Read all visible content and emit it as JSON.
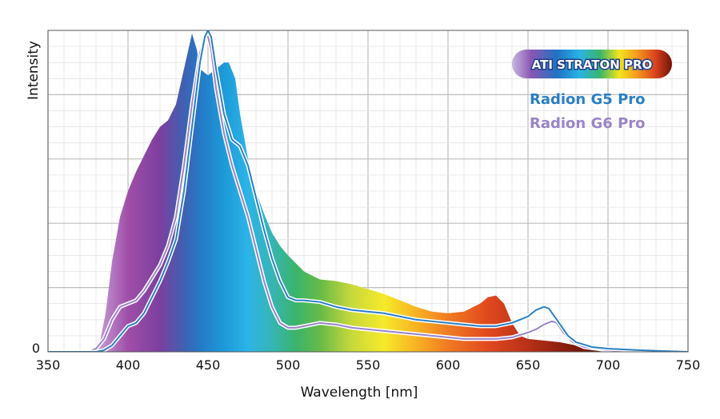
{
  "chart_data": {
    "type": "area",
    "xlabel": "Wavelength [nm]",
    "ylabel": "Intensity",
    "xlim": [
      350,
      750
    ],
    "ylim": [
      0,
      100
    ],
    "x_ticks": [
      "350",
      "400",
      "450",
      "500",
      "550",
      "600",
      "650",
      "700",
      "750"
    ],
    "y_ticks": [
      "0"
    ],
    "grid": true,
    "legend_position": "top-right",
    "series": [
      {
        "name": "ATI STRATON PRO",
        "style": "filled-spectrum",
        "points": [
          [
            350,
            0
          ],
          [
            375,
            0
          ],
          [
            382,
            2
          ],
          [
            386,
            12
          ],
          [
            390,
            28
          ],
          [
            395,
            42
          ],
          [
            400,
            50
          ],
          [
            405,
            56
          ],
          [
            410,
            61
          ],
          [
            415,
            66
          ],
          [
            420,
            70
          ],
          [
            425,
            72
          ],
          [
            430,
            77
          ],
          [
            435,
            88
          ],
          [
            440,
            99
          ],
          [
            443,
            94
          ],
          [
            445,
            88
          ],
          [
            450,
            86
          ],
          [
            455,
            88
          ],
          [
            460,
            90
          ],
          [
            463,
            90
          ],
          [
            467,
            85
          ],
          [
            470,
            74
          ],
          [
            475,
            60
          ],
          [
            480,
            50
          ],
          [
            485,
            43
          ],
          [
            490,
            37
          ],
          [
            495,
            33
          ],
          [
            500,
            30
          ],
          [
            510,
            25
          ],
          [
            520,
            22.5
          ],
          [
            530,
            22
          ],
          [
            540,
            21
          ],
          [
            550,
            19.5
          ],
          [
            560,
            18
          ],
          [
            570,
            16
          ],
          [
            580,
            14
          ],
          [
            590,
            12.5
          ],
          [
            600,
            12
          ],
          [
            610,
            12.5
          ],
          [
            620,
            15
          ],
          [
            625,
            17
          ],
          [
            630,
            17.5
          ],
          [
            635,
            15
          ],
          [
            640,
            9
          ],
          [
            645,
            5
          ],
          [
            650,
            4
          ],
          [
            660,
            3.5
          ],
          [
            670,
            3
          ],
          [
            680,
            2
          ],
          [
            690,
            1
          ],
          [
            700,
            0.5
          ],
          [
            720,
            0
          ],
          [
            750,
            0
          ]
        ]
      },
      {
        "name": "Radion G5 Pro",
        "color": "#2a7fc4",
        "points": [
          [
            350,
            0
          ],
          [
            380,
            0
          ],
          [
            385,
            0.5
          ],
          [
            390,
            2
          ],
          [
            395,
            5
          ],
          [
            400,
            8
          ],
          [
            405,
            9
          ],
          [
            410,
            12
          ],
          [
            415,
            17
          ],
          [
            420,
            22
          ],
          [
            425,
            28
          ],
          [
            430,
            35
          ],
          [
            435,
            50
          ],
          [
            440,
            70
          ],
          [
            445,
            90
          ],
          [
            448,
            98
          ],
          [
            450,
            100
          ],
          [
            452,
            98
          ],
          [
            455,
            88
          ],
          [
            460,
            74
          ],
          [
            465,
            66
          ],
          [
            470,
            64
          ],
          [
            475,
            58
          ],
          [
            480,
            48
          ],
          [
            485,
            38
          ],
          [
            490,
            29
          ],
          [
            495,
            22
          ],
          [
            500,
            17
          ],
          [
            505,
            16
          ],
          [
            510,
            16
          ],
          [
            520,
            15.5
          ],
          [
            530,
            14
          ],
          [
            540,
            13
          ],
          [
            550,
            12.5
          ],
          [
            560,
            12
          ],
          [
            570,
            11
          ],
          [
            580,
            10
          ],
          [
            590,
            9.5
          ],
          [
            600,
            9
          ],
          [
            610,
            8.5
          ],
          [
            620,
            8
          ],
          [
            630,
            8
          ],
          [
            640,
            9
          ],
          [
            650,
            11
          ],
          [
            655,
            13
          ],
          [
            660,
            14
          ],
          [
            663,
            13.5
          ],
          [
            668,
            10
          ],
          [
            675,
            5
          ],
          [
            680,
            3
          ],
          [
            690,
            1.5
          ],
          [
            700,
            1
          ],
          [
            720,
            0.5
          ],
          [
            750,
            0
          ]
        ]
      },
      {
        "name": "Radion G6 Pro",
        "color": "#9a84c8",
        "points": [
          [
            350,
            0
          ],
          [
            375,
            0
          ],
          [
            380,
            1
          ],
          [
            385,
            4
          ],
          [
            390,
            10
          ],
          [
            395,
            14
          ],
          [
            400,
            15
          ],
          [
            405,
            16
          ],
          [
            410,
            19
          ],
          [
            415,
            23
          ],
          [
            420,
            27
          ],
          [
            425,
            33
          ],
          [
            430,
            42
          ],
          [
            435,
            58
          ],
          [
            440,
            77
          ],
          [
            445,
            93
          ],
          [
            448,
            98
          ],
          [
            450,
            98
          ],
          [
            452,
            94
          ],
          [
            455,
            82
          ],
          [
            460,
            68
          ],
          [
            465,
            58
          ],
          [
            470,
            50
          ],
          [
            475,
            42
          ],
          [
            480,
            32
          ],
          [
            485,
            22
          ],
          [
            490,
            14
          ],
          [
            495,
            9
          ],
          [
            500,
            7.5
          ],
          [
            505,
            7.5
          ],
          [
            510,
            8
          ],
          [
            520,
            9
          ],
          [
            530,
            8.5
          ],
          [
            540,
            7.5
          ],
          [
            550,
            7
          ],
          [
            560,
            6.5
          ],
          [
            570,
            6
          ],
          [
            580,
            5.5
          ],
          [
            590,
            5
          ],
          [
            600,
            4.5
          ],
          [
            610,
            4
          ],
          [
            620,
            4
          ],
          [
            630,
            4
          ],
          [
            640,
            4.5
          ],
          [
            650,
            6
          ],
          [
            655,
            7
          ],
          [
            660,
            8.5
          ],
          [
            665,
            9.5
          ],
          [
            668,
            9
          ],
          [
            672,
            6
          ],
          [
            678,
            3
          ],
          [
            685,
            1.5
          ],
          [
            700,
            0.5
          ],
          [
            720,
            0
          ],
          [
            750,
            0
          ]
        ]
      }
    ],
    "legend": [
      {
        "label": "ATI STRATON PRO",
        "style": "rainbow-badge"
      },
      {
        "label": "Radion G5 Pro",
        "color": "#2a7fc4"
      },
      {
        "label": "Radion G6 Pro",
        "color": "#9a84c8"
      }
    ]
  }
}
